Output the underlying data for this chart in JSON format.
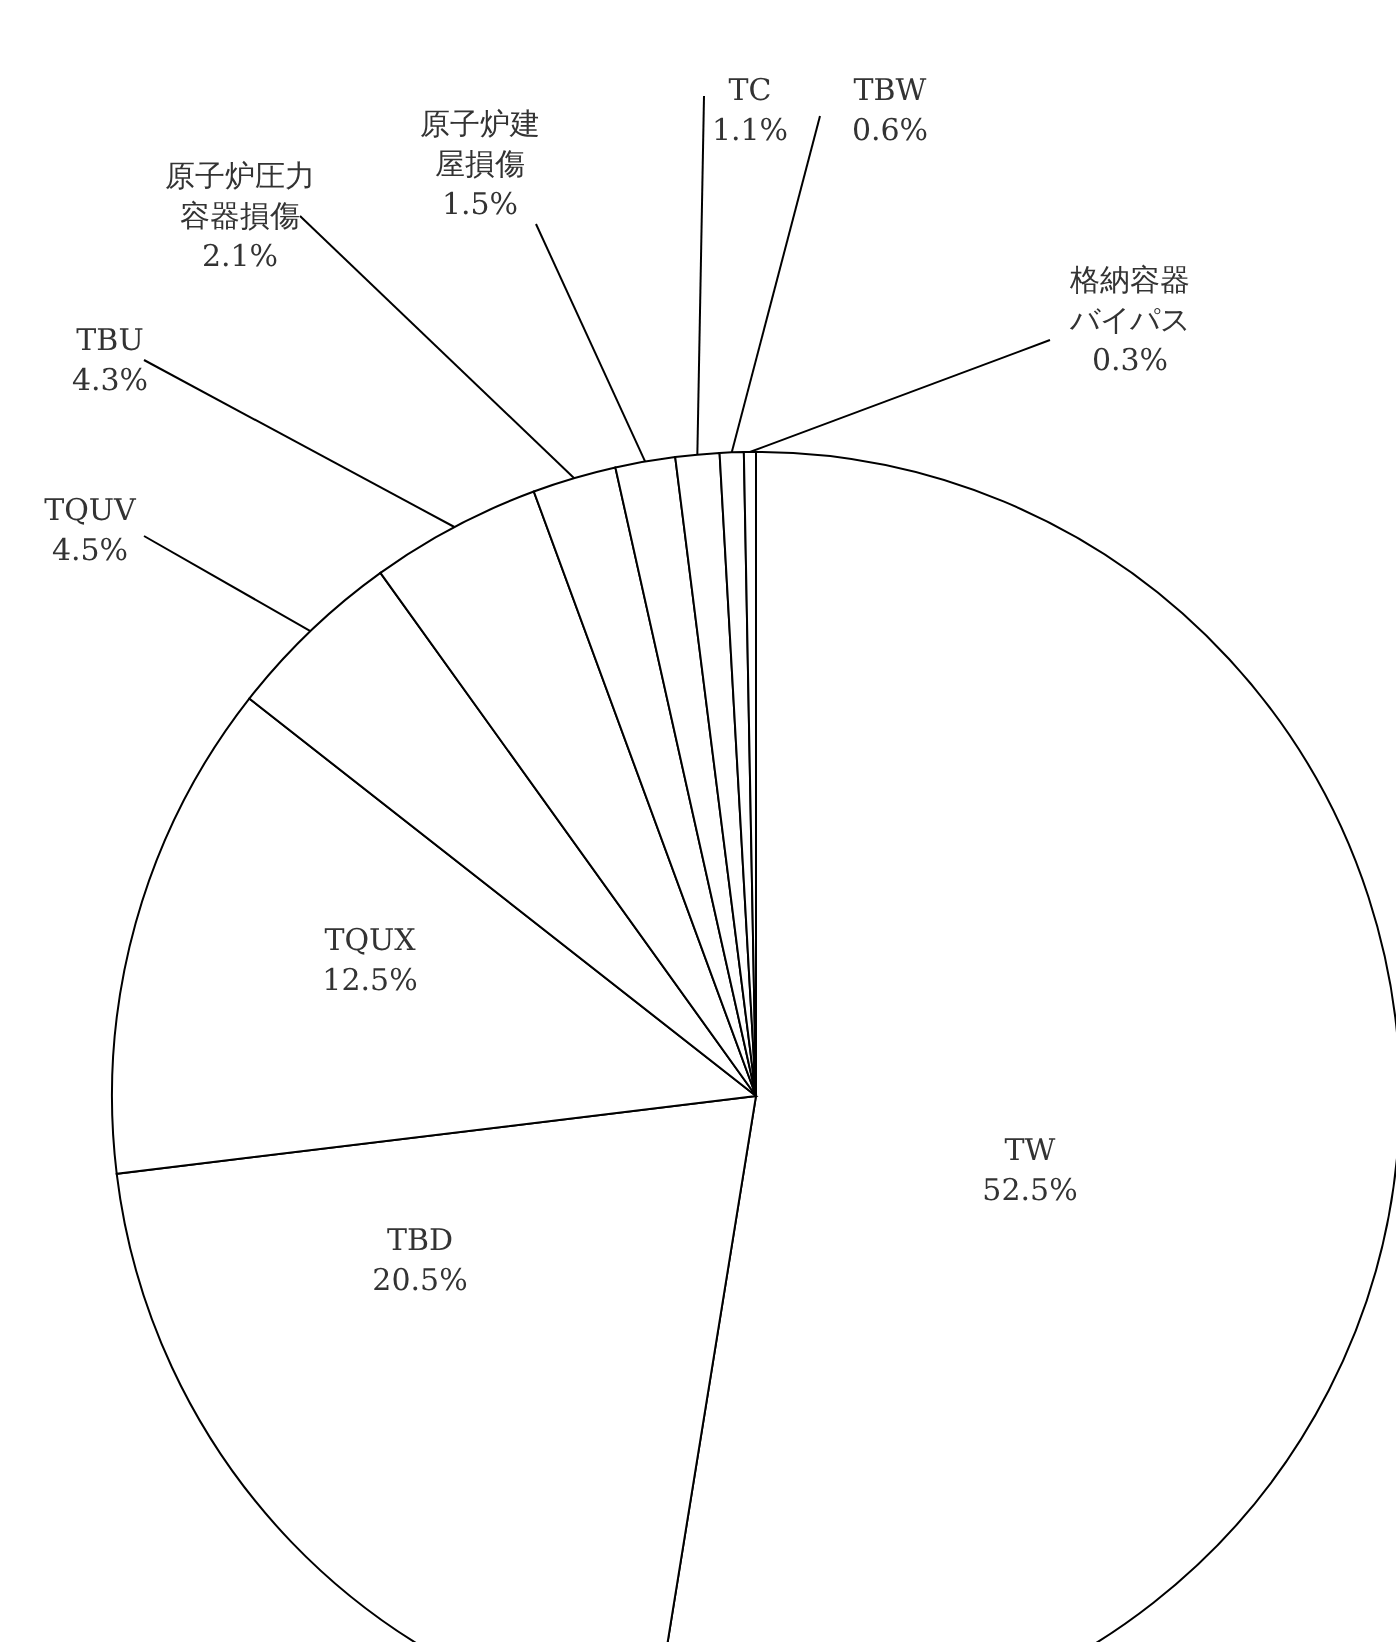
{
  "chart_data": {
    "type": "pie",
    "categories": [
      "TW",
      "TBD",
      "TQUX",
      "TQUV",
      "TBU",
      "原子炉圧力容器損傷",
      "原子炉建屋損傷",
      "TC",
      "TBW",
      "格納容器バイパス"
    ],
    "values": [
      52.5,
      20.5,
      12.5,
      4.5,
      4.3,
      2.1,
      1.5,
      1.1,
      0.6,
      0.3
    ],
    "value_labels": [
      "52.5%",
      "20.5%",
      "12.5%",
      "4.5%",
      "4.3%",
      "2.1%",
      "1.5%",
      "1.1%",
      "0.6%",
      "0.3%"
    ],
    "colors": [
      "#ffffff",
      "#ffffff",
      "#ffffff",
      "#ffffff",
      "#ffffff",
      "#ffffff",
      "#ffffff",
      "#ffffff",
      "#ffffff",
      "#ffffff"
    ]
  }
}
